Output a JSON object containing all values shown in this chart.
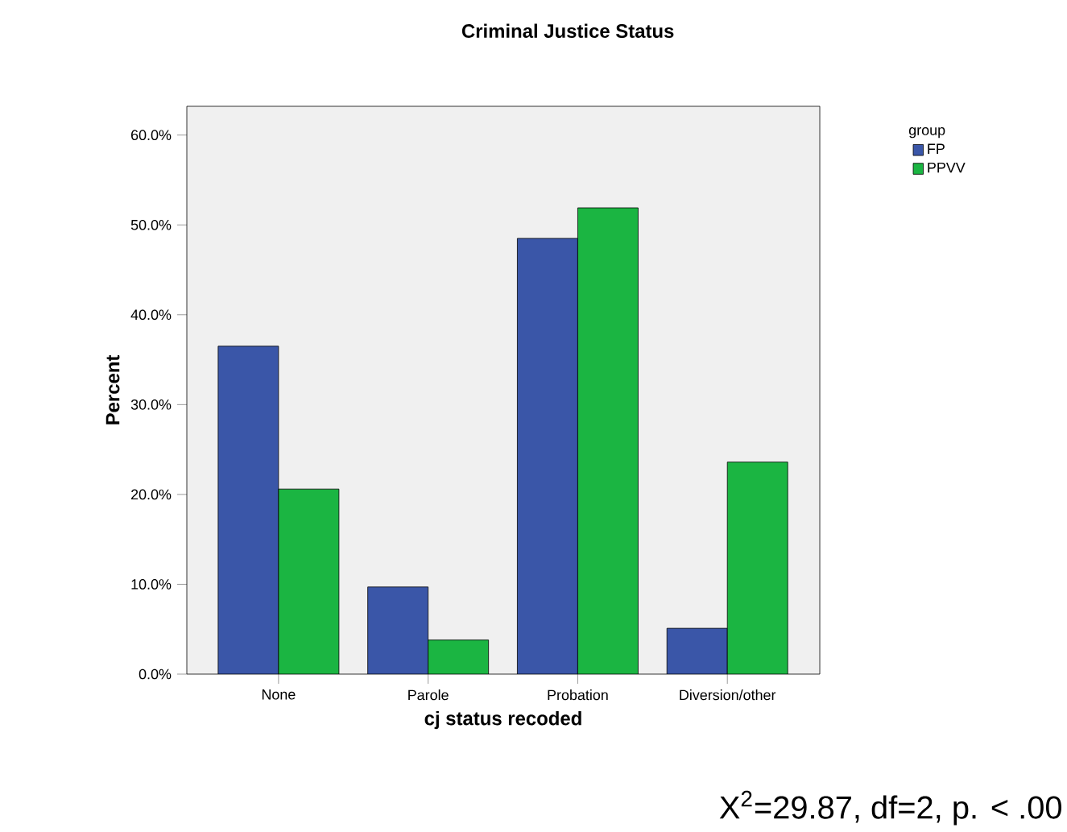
{
  "chart_data": {
    "type": "bar",
    "title": "Criminal Justice Status",
    "xlabel": "cj status recoded",
    "ylabel": "Percent",
    "legend_title": "group",
    "categories": [
      "None",
      "Parole",
      "Probation",
      "Diversion/other"
    ],
    "series": [
      {
        "name": "FP",
        "color": "#3a56a8",
        "values": [
          36.5,
          9.7,
          48.5,
          5.1
        ]
      },
      {
        "name": "PPVV",
        "color": "#1bb542",
        "values": [
          20.6,
          3.8,
          51.9,
          23.6
        ]
      }
    ],
    "ylim": [
      0,
      63.2
    ],
    "yticks": [
      {
        "value": 0,
        "label": "0.0%"
      },
      {
        "value": 10,
        "label": "10.0%"
      },
      {
        "value": 20,
        "label": "20.0%"
      },
      {
        "value": 30,
        "label": "30.0%"
      },
      {
        "value": 40,
        "label": "40.0%"
      },
      {
        "value": 50,
        "label": "50.0%"
      },
      {
        "value": 60,
        "label": "60.0%"
      }
    ],
    "legend": "top right",
    "grid": false,
    "annotations": [
      "X$^{2}$=29.87, df=2, p. < .00"
    ]
  }
}
